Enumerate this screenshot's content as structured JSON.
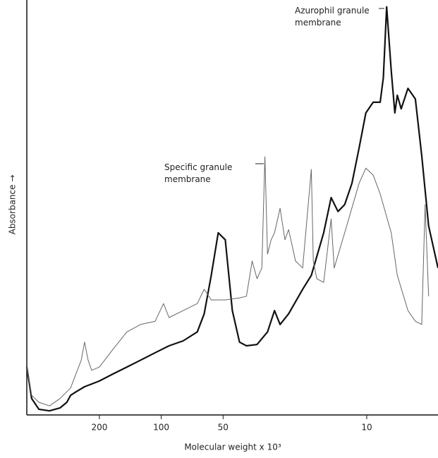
{
  "chart_data": {
    "type": "line",
    "x_label": "Molecular weight x 10³",
    "y_label": "Absorbance →",
    "xlim": [
      451,
      4.5
    ],
    "ylim": [
      0,
      100
    ],
    "xticks": [
      200,
      100,
      50,
      10
    ],
    "log_x": true,
    "series": [
      {
        "name": "Azurophil granule membrane",
        "color": "#111111",
        "width": 2.2,
        "x": [
          451,
          427,
          394,
          350,
          311,
          288,
          276,
          259,
          236,
          200,
          172,
          147,
          126,
          107,
          91.6,
          78.2,
          66.8,
          61.8,
          57.1,
          52.8,
          48.8,
          45.1,
          41.6,
          38.5,
          34.2,
          30.4,
          28.1,
          26.4,
          24.0,
          20.5,
          18.6,
          16.2,
          14.9,
          13.8,
          12.8,
          11.8,
          10.9,
          10.1,
          9.3,
          8.6,
          8.3,
          8.0,
          7.6,
          7.3,
          7.1,
          6.8,
          6.3,
          5.8,
          5.4,
          5.0,
          4.5
        ],
        "values": [
          11.7,
          4.0,
          1.4,
          1.0,
          1.7,
          3.1,
          4.8,
          5.7,
          6.9,
          8.3,
          10.0,
          11.7,
          13.4,
          15.2,
          16.9,
          18.1,
          20.3,
          24.7,
          34.1,
          44.5,
          42.8,
          25.5,
          17.8,
          16.9,
          17.2,
          20.3,
          25.5,
          22.1,
          24.7,
          30.7,
          34.1,
          44.5,
          53.1,
          49.7,
          51.4,
          56.6,
          65.2,
          73.8,
          76.4,
          76.4,
          82.4,
          99.7,
          84.1,
          73.8,
          78.1,
          74.8,
          79.8,
          77.2,
          63.4,
          46.2,
          35.9
        ]
      },
      {
        "name": "Specific granule membrane",
        "color": "#666666",
        "width": 1,
        "x": [
          451,
          427,
          394,
          350,
          311,
          276,
          245,
          236,
          227,
          218,
          200,
          172,
          147,
          126,
          107,
          97.5,
          91.6,
          78.2,
          66.8,
          61.8,
          57.1,
          48.8,
          41.6,
          38.5,
          36.1,
          34.2,
          32.4,
          31.3,
          30.4,
          29.2,
          28.1,
          26.4,
          25.0,
          24.0,
          22.2,
          20.5,
          18.6,
          18.2,
          17.5,
          16.2,
          14.9,
          14.4,
          12.8,
          10.9,
          10.1,
          9.3,
          8.6,
          7.6,
          7.1,
          6.3,
          5.8,
          5.4,
          5.2,
          5.0
        ],
        "values": [
          11.7,
          4.8,
          3.1,
          2.2,
          4.0,
          6.6,
          13.4,
          17.8,
          13.4,
          10.9,
          11.7,
          16.0,
          20.3,
          22.1,
          22.9,
          27.2,
          23.8,
          25.5,
          27.2,
          30.7,
          28.1,
          28.1,
          28.6,
          29.0,
          37.6,
          33.3,
          35.9,
          63.1,
          39.3,
          42.8,
          44.5,
          50.5,
          42.8,
          45.3,
          37.6,
          35.9,
          60.0,
          37.6,
          33.3,
          32.4,
          47.9,
          35.9,
          44.5,
          56.6,
          60.3,
          58.6,
          54.0,
          44.5,
          34.1,
          25.5,
          22.9,
          22.1,
          51.4,
          29.0
        ]
      }
    ]
  }
}
